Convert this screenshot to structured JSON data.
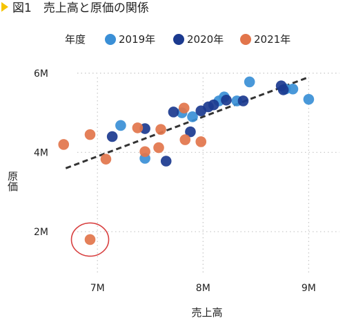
{
  "figure": {
    "title": "図1　売上高と原価の関係"
  },
  "legend": {
    "title": "年度",
    "entries": [
      {
        "label": "2019年",
        "color": "#3a8fd6"
      },
      {
        "label": "2020年",
        "color": "#1b3a8f"
      },
      {
        "label": "2021年",
        "color": "#e2754b"
      }
    ]
  },
  "chart_data": {
    "type": "scatter",
    "title": "図1　売上高と原価の関係",
    "xlabel": "売上高",
    "ylabel": "原価",
    "xlim": [
      6.6,
      9.2
    ],
    "ylim": [
      0.9,
      6.8
    ],
    "x_unit": "M",
    "y_unit": "M",
    "x_ticks": [
      7,
      8,
      9
    ],
    "x_tick_labels": [
      "7M",
      "8M",
      "9M"
    ],
    "y_ticks": [
      2,
      4,
      6
    ],
    "y_tick_labels": [
      "2M",
      "4M",
      "6M"
    ],
    "grid": true,
    "legend_position": "top",
    "trendline": {
      "x": [
        6.7,
        9.0
      ],
      "y": [
        3.6,
        5.9
      ],
      "style": "dashed"
    },
    "highlight": {
      "x": 6.93,
      "y": 1.8,
      "shape": "circle",
      "color": "#d84040"
    },
    "series": [
      {
        "name": "2019年",
        "color": "#3a8fd6",
        "points": [
          {
            "x": 7.22,
            "y": 4.68
          },
          {
            "x": 7.45,
            "y": 3.85
          },
          {
            "x": 7.8,
            "y": 5.0
          },
          {
            "x": 7.9,
            "y": 4.9
          },
          {
            "x": 8.15,
            "y": 5.3
          },
          {
            "x": 8.2,
            "y": 5.4
          },
          {
            "x": 8.32,
            "y": 5.3
          },
          {
            "x": 8.44,
            "y": 5.78
          },
          {
            "x": 8.78,
            "y": 5.6
          },
          {
            "x": 8.85,
            "y": 5.6
          },
          {
            "x": 9.0,
            "y": 5.34
          }
        ]
      },
      {
        "name": "2020年",
        "color": "#1b3a8f",
        "points": [
          {
            "x": 7.14,
            "y": 4.4
          },
          {
            "x": 7.45,
            "y": 4.6
          },
          {
            "x": 7.65,
            "y": 3.78
          },
          {
            "x": 7.72,
            "y": 5.02
          },
          {
            "x": 7.88,
            "y": 4.52
          },
          {
            "x": 7.98,
            "y": 5.05
          },
          {
            "x": 8.05,
            "y": 5.15
          },
          {
            "x": 8.1,
            "y": 5.2
          },
          {
            "x": 8.22,
            "y": 5.32
          },
          {
            "x": 8.38,
            "y": 5.3
          },
          {
            "x": 8.74,
            "y": 5.68
          },
          {
            "x": 8.76,
            "y": 5.58
          }
        ]
      },
      {
        "name": "2021年",
        "color": "#e2754b",
        "points": [
          {
            "x": 6.68,
            "y": 4.2
          },
          {
            "x": 6.93,
            "y": 4.45
          },
          {
            "x": 7.08,
            "y": 3.83
          },
          {
            "x": 7.38,
            "y": 4.62
          },
          {
            "x": 7.45,
            "y": 4.02
          },
          {
            "x": 7.58,
            "y": 4.12
          },
          {
            "x": 7.6,
            "y": 4.58
          },
          {
            "x": 7.82,
            "y": 5.12
          },
          {
            "x": 7.83,
            "y": 4.32
          },
          {
            "x": 7.98,
            "y": 4.27
          },
          {
            "x": 6.93,
            "y": 1.8
          }
        ]
      }
    ]
  }
}
